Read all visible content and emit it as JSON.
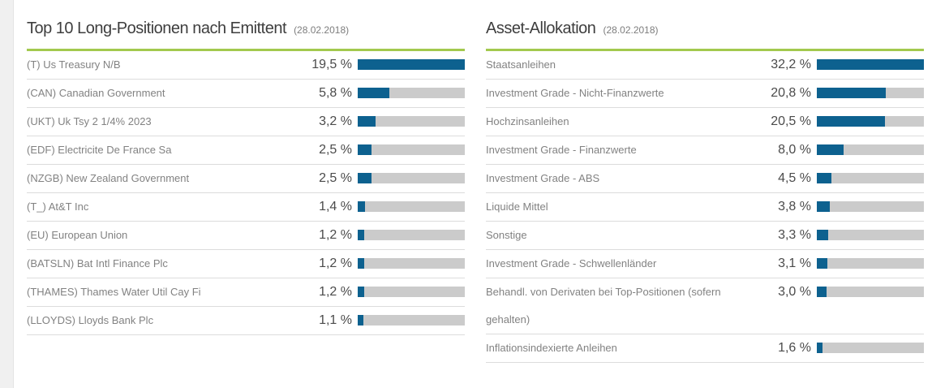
{
  "report_date": "(28.02.2018)",
  "colors": {
    "accent_green": "#a3c94e",
    "bar_blue": "#0d618f",
    "bar_track": "#cbcbcb",
    "separator": "#dcdcdc",
    "label_text": "#828282",
    "value_text": "#4b4b4b"
  },
  "chart_data": [
    {
      "type": "bar",
      "orientation": "horizontal",
      "title": "Top 10 Long-Positionen nach Emittent",
      "subtitle": "(28.02.2018)",
      "unit": "%",
      "xlim": [
        0,
        19.5
      ],
      "grid": false,
      "legend": false,
      "bar_color": "#0d618f",
      "track_color": "#cbcbcb",
      "categories": [
        "(T) Us Treasury N/B",
        "(CAN) Canadian Government",
        "(UKT) Uk Tsy 2 1/4% 2023",
        "(EDF) Electricite De France Sa",
        "(NZGB) New Zealand Government",
        "(T_) At&T Inc",
        "(EU) European Union",
        "(BATSLN) Bat Intl Finance Plc",
        "(THAMES) Thames Water Util Cay Fi",
        "(LLOYDS) Lloyds Bank Plc"
      ],
      "values": [
        19.5,
        5.8,
        3.2,
        2.5,
        2.5,
        1.4,
        1.2,
        1.2,
        1.2,
        1.1
      ],
      "value_labels": [
        "19,5 %",
        "5,8 %",
        "3,2 %",
        "2,5 %",
        "2,5 %",
        "1,4 %",
        "1,2 %",
        "1,2 %",
        "1,2 %",
        "1,1 %"
      ]
    },
    {
      "type": "bar",
      "orientation": "horizontal",
      "title": "Asset-Allokation",
      "subtitle": "(28.02.2018)",
      "unit": "%",
      "xlim": [
        0,
        32.2
      ],
      "grid": false,
      "legend": false,
      "bar_color": "#0d618f",
      "track_color": "#cbcbcb",
      "categories": [
        "Staatsanleihen",
        "Investment Grade - Nicht-Finanzwerte",
        "Hochzinsanleihen",
        "Investment Grade - Finanzwerte",
        "Investment Grade - ABS",
        "Liquide Mittel",
        "Sonstige",
        "Investment Grade - Schwellenländer",
        "Behandl. von Derivaten bei Top-Positionen (sofern gehalten)",
        "Inflationsindexierte Anleihen"
      ],
      "values": [
        32.2,
        20.8,
        20.5,
        8.0,
        4.5,
        3.8,
        3.3,
        3.1,
        3.0,
        1.6
      ],
      "value_labels": [
        "32,2 %",
        "20,8 %",
        "20,5 %",
        "8,0 %",
        "4,5 %",
        "3,8 %",
        "3,3 %",
        "3,1 %",
        "3,0 %",
        "1,6 %"
      ]
    }
  ]
}
